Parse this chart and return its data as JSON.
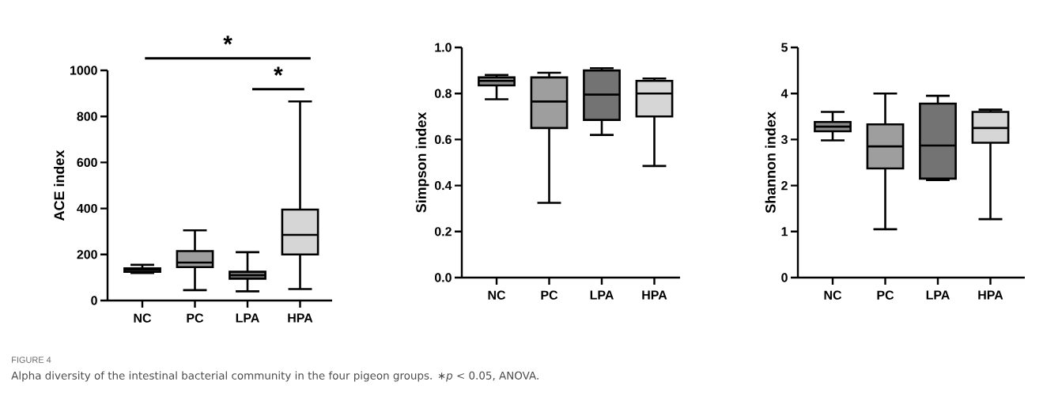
{
  "chart_data": [
    {
      "type": "box",
      "ylabel": "ACE index",
      "categories": [
        "NC",
        "PC",
        "LPA",
        "HPA"
      ],
      "ylim": [
        0,
        1000
      ],
      "yticks": [
        0,
        200,
        400,
        600,
        800,
        1000
      ],
      "colors": [
        "#8c8c8c",
        "#9e9e9e",
        "#737373",
        "#d6d6d6"
      ],
      "boxes": [
        {
          "low": 120,
          "q1": 125,
          "median": 135,
          "q3": 140,
          "high": 155
        },
        {
          "low": 45,
          "q1": 145,
          "median": 165,
          "q3": 215,
          "high": 305
        },
        {
          "low": 40,
          "q1": 95,
          "median": 110,
          "q3": 125,
          "high": 210
        },
        {
          "low": 50,
          "q1": 200,
          "median": 285,
          "q3": 395,
          "high": 865
        }
      ],
      "annotations": [
        "*",
        "*",
        "FIGURE 4",
        "Alpha diversity of the intestinal bacterial community in the four pigeon groups. ∗*p* < 0.05, ANOVA."
      ]
    },
    {
      "type": "box",
      "ylabel": "Simpson index",
      "categories": [
        "NC",
        "PC",
        "LPA",
        "HPA"
      ],
      "ylim": [
        0,
        1
      ],
      "yticks": [
        {
          "value": 0,
          "label": "0.0"
        },
        0.2,
        0.4,
        0.6,
        0.8,
        {
          "value": 1,
          "label": "1.0"
        }
      ],
      "colors": [
        "#8c8c8c",
        "#9e9e9e",
        "#737373",
        "#d6d6d6"
      ],
      "boxes": [
        {
          "low": 0.775,
          "q1": 0.835,
          "median": 0.855,
          "q3": 0.87,
          "high": 0.88
        },
        {
          "low": 0.325,
          "q1": 0.65,
          "median": 0.765,
          "q3": 0.87,
          "high": 0.89
        },
        {
          "low": 0.62,
          "q1": 0.685,
          "median": 0.795,
          "q3": 0.9,
          "high": 0.91
        },
        {
          "low": 0.485,
          "q1": 0.7,
          "median": 0.8,
          "q3": 0.855,
          "high": 0.865
        }
      ]
    },
    {
      "type": "box",
      "ylabel": "Shannon index",
      "categories": [
        "NC",
        "PC",
        "LPA",
        "HPA"
      ],
      "ylim": [
        0,
        5
      ],
      "yticks": [
        0,
        1,
        2,
        3,
        4,
        5
      ],
      "colors": [
        "#8c8c8c",
        "#9e9e9e",
        "#737373",
        "#d6d6d6"
      ],
      "boxes": [
        {
          "low": 2.98,
          "q1": 3.18,
          "median": 3.28,
          "q3": 3.38,
          "high": 3.6
        },
        {
          "low": 1.05,
          "q1": 2.37,
          "median": 2.85,
          "q3": 3.33,
          "high": 4.0
        },
        {
          "low": 2.12,
          "q1": 2.15,
          "median": 2.87,
          "q3": 3.78,
          "high": 3.95
        },
        {
          "low": 1.27,
          "q1": 2.93,
          "median": 3.25,
          "q3": 3.6,
          "high": 3.65
        }
      ]
    }
  ]
}
